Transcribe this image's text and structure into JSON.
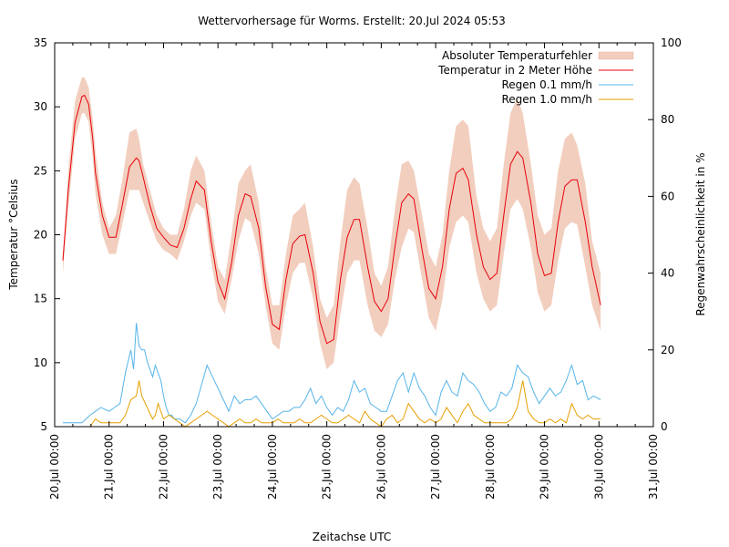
{
  "chart_data": {
    "type": "line",
    "title": "Wettervorhersage für Worms. Erstellt: 20.Jul 2024 05:53",
    "xlabel": "Zeitachse UTC",
    "ylabel": "Temperatur °Celsius",
    "y2label": "Regenwahrscheinlichkeit in %",
    "xlim_days": [
      0,
      11
    ],
    "x_unit": "days since 20.Jul 00:00",
    "ylim": [
      5,
      35
    ],
    "y2lim": [
      0,
      100
    ],
    "grid": false,
    "legend_position": "top-right",
    "x_ticks": [
      "20.Jul 00:00",
      "21.Jul 00:00",
      "22.Jul 00:00",
      "23.Jul 00:00",
      "24.Jul 00:00",
      "25.Jul 00:00",
      "26.Jul 00:00",
      "27.Jul 00:00",
      "28.Jul 00:00",
      "29.Jul 00:00",
      "30.Jul 00:00",
      "31.Jul 00:00"
    ],
    "y_ticks": [
      5,
      10,
      15,
      20,
      25,
      30,
      35
    ],
    "y2_ticks": [
      0,
      20,
      40,
      60,
      80,
      100
    ],
    "x_minor_ticks_per_day": 3,
    "colors": {
      "band": "#f2cebe",
      "temp": "#e8000b",
      "rain01": "#56b4e9",
      "rain10": "#e69f00"
    },
    "legend": [
      {
        "label": "Absoluter Temperaturfehler",
        "kind": "band"
      },
      {
        "label": "Temperatur in 2 Meter Höhe",
        "kind": "temp"
      },
      {
        "label": "Regen 0.1 mm/h",
        "kind": "rain01"
      },
      {
        "label": "Regen 1.0 mm/h",
        "kind": "rain10"
      }
    ],
    "series": [
      {
        "name": "Temperatur in 2 Meter Höhe",
        "unit": "°C",
        "x_days": [
          0.15,
          0.25,
          0.375,
          0.5,
          0.55,
          0.625,
          0.7,
          0.75,
          0.875,
          1.0,
          1.125,
          1.25,
          1.375,
          1.5,
          1.55,
          1.625,
          1.75,
          1.875,
          2.0,
          2.125,
          2.25,
          2.375,
          2.5,
          2.6,
          2.75,
          2.875,
          3.0,
          3.125,
          3.25,
          3.375,
          3.5,
          3.6,
          3.75,
          3.875,
          4.0,
          4.125,
          4.25,
          4.375,
          4.5,
          4.6,
          4.75,
          4.875,
          5.0,
          5.125,
          5.25,
          5.375,
          5.5,
          5.6,
          5.75,
          5.875,
          6.0,
          6.125,
          6.25,
          6.375,
          6.5,
          6.6,
          6.75,
          6.875,
          7.0,
          7.125,
          7.25,
          7.375,
          7.5,
          7.6,
          7.75,
          7.875,
          8.0,
          8.125,
          8.25,
          8.375,
          8.5,
          8.6,
          8.75,
          8.875,
          9.0,
          9.125,
          9.25,
          9.375,
          9.5,
          9.6,
          9.75,
          9.875,
          10.03
        ],
        "values": [
          18.0,
          23.5,
          28.8,
          30.8,
          30.9,
          30.2,
          27.5,
          24.8,
          21.5,
          19.8,
          19.8,
          22.5,
          25.3,
          26.0,
          25.8,
          24.5,
          22.3,
          20.5,
          19.8,
          19.2,
          19.0,
          20.5,
          22.8,
          24.2,
          23.5,
          19.5,
          16.3,
          15.0,
          17.8,
          21.5,
          23.2,
          23.0,
          20.5,
          16.0,
          13.0,
          12.6,
          16.5,
          19.3,
          19.9,
          20.0,
          17.0,
          13.2,
          11.5,
          11.8,
          16.5,
          19.8,
          21.2,
          21.2,
          17.5,
          14.8,
          14.0,
          15.0,
          19.0,
          22.5,
          23.2,
          22.8,
          18.8,
          15.8,
          15.0,
          17.5,
          22.0,
          24.8,
          25.2,
          24.3,
          20.0,
          17.5,
          16.5,
          17.0,
          21.5,
          25.5,
          26.5,
          26.0,
          22.5,
          18.5,
          16.8,
          17.0,
          21.0,
          23.8,
          24.3,
          24.3,
          21.0,
          17.5,
          14.5
        ]
      },
      {
        "name": "Absoluter Temperaturfehler (upper)",
        "unit": "°C",
        "values": [
          18.0,
          25.0,
          30.5,
          32.3,
          32.3,
          31.5,
          29.0,
          26.5,
          22.5,
          20.5,
          21.5,
          24.5,
          28.0,
          28.3,
          27.5,
          25.5,
          23.5,
          21.5,
          20.5,
          20.0,
          20.0,
          22.0,
          25.0,
          26.2,
          25.0,
          21.0,
          17.5,
          16.5,
          20.0,
          24.0,
          25.0,
          25.5,
          22.5,
          17.5,
          14.5,
          14.5,
          18.5,
          21.5,
          22.0,
          22.5,
          19.0,
          15.0,
          13.5,
          14.5,
          19.5,
          23.5,
          24.5,
          24.0,
          20.5,
          17.0,
          16.0,
          17.5,
          22.0,
          25.5,
          25.8,
          25.0,
          21.5,
          18.5,
          17.5,
          20.0,
          25.0,
          28.5,
          29.0,
          28.5,
          23.0,
          20.5,
          19.5,
          20.5,
          25.5,
          29.5,
          30.7,
          29.5,
          25.5,
          21.5,
          20.0,
          20.5,
          25.0,
          27.5,
          28.0,
          27.0,
          24.0,
          19.5,
          17.0
        ]
      },
      {
        "name": "Absoluter Temperaturfehler (lower)",
        "unit": "°C",
        "values": [
          17.0,
          22.0,
          27.5,
          29.5,
          29.5,
          28.8,
          26.0,
          23.2,
          20.0,
          18.5,
          18.5,
          21.0,
          23.5,
          23.5,
          23.5,
          22.5,
          21.0,
          19.5,
          18.8,
          18.5,
          18.0,
          19.5,
          21.5,
          22.5,
          22.0,
          18.0,
          14.8,
          13.8,
          16.5,
          19.5,
          21.3,
          21.0,
          18.5,
          14.5,
          11.5,
          11.0,
          14.5,
          17.0,
          17.8,
          17.8,
          15.0,
          11.5,
          9.5,
          10.0,
          13.8,
          17.0,
          18.0,
          18.0,
          14.5,
          12.5,
          12.0,
          13.0,
          16.5,
          19.0,
          20.5,
          20.2,
          16.5,
          13.5,
          12.5,
          15.0,
          19.0,
          21.0,
          21.5,
          21.0,
          17.0,
          15.0,
          14.0,
          14.5,
          18.5,
          22.0,
          22.8,
          22.0,
          19.0,
          15.5,
          14.0,
          14.5,
          18.0,
          20.5,
          21.0,
          20.8,
          17.5,
          14.5,
          12.5
        ]
      },
      {
        "name": "Regen 0.1 mm/h",
        "unit": "%",
        "x_days": [
          0.15,
          0.5,
          0.65,
          0.75,
          0.85,
          1.0,
          1.1,
          1.2,
          1.3,
          1.4,
          1.45,
          1.5,
          1.55,
          1.6,
          1.65,
          1.7,
          1.8,
          1.85,
          1.9,
          1.95,
          2.0,
          2.05,
          2.1,
          2.15,
          2.2,
          2.3,
          2.4,
          2.5,
          2.6,
          2.7,
          2.8,
          2.9,
          3.0,
          3.1,
          3.2,
          3.3,
          3.4,
          3.5,
          3.6,
          3.7,
          3.8,
          3.9,
          4.0,
          4.1,
          4.2,
          4.3,
          4.4,
          4.5,
          4.6,
          4.7,
          4.8,
          4.9,
          5.0,
          5.1,
          5.2,
          5.3,
          5.4,
          5.5,
          5.6,
          5.7,
          5.8,
          5.9,
          6.0,
          6.1,
          6.2,
          6.3,
          6.4,
          6.5,
          6.6,
          6.7,
          6.8,
          6.9,
          7.0,
          7.1,
          7.2,
          7.3,
          7.4,
          7.5,
          7.6,
          7.7,
          7.8,
          7.9,
          8.0,
          8.1,
          8.2,
          8.3,
          8.4,
          8.5,
          8.6,
          8.7,
          8.8,
          8.9,
          9.0,
          9.1,
          9.2,
          9.3,
          9.4,
          9.5,
          9.6,
          9.7,
          9.8,
          9.9,
          10.03
        ],
        "values": [
          1,
          1,
          3,
          4,
          5,
          4,
          5,
          6,
          14,
          20,
          15,
          27,
          21,
          20,
          20,
          17,
          13,
          16,
          14,
          12,
          8,
          5,
          3,
          3,
          2,
          2,
          1,
          3,
          6,
          11,
          16,
          13,
          10,
          7,
          4,
          8,
          6,
          7,
          7,
          8,
          6,
          4,
          2,
          3,
          4,
          4,
          5,
          5,
          7,
          10,
          6,
          8,
          5,
          3,
          5,
          4,
          7,
          12,
          9,
          10,
          6,
          5,
          4,
          4,
          8,
          12,
          14,
          9,
          14,
          10,
          8,
          5,
          3,
          9,
          12,
          9,
          8,
          14,
          12,
          11,
          9,
          6,
          4,
          5,
          9,
          8,
          10,
          16,
          14,
          13,
          9,
          6,
          8,
          10,
          8,
          9,
          12,
          16,
          11,
          12,
          7,
          8,
          7
        ]
      },
      {
        "name": "Regen 1.0 mm/h",
        "unit": "%",
        "x_days": [
          0.15,
          0.65,
          0.75,
          0.85,
          1.0,
          1.1,
          1.2,
          1.3,
          1.4,
          1.5,
          1.55,
          1.6,
          1.7,
          1.8,
          1.85,
          1.9,
          2.0,
          2.1,
          2.2,
          2.3,
          2.4,
          2.5,
          2.6,
          2.7,
          2.8,
          2.9,
          3.0,
          3.1,
          3.2,
          3.3,
          3.4,
          3.5,
          3.6,
          3.7,
          3.8,
          3.9,
          4.0,
          4.1,
          4.2,
          4.3,
          4.4,
          4.5,
          4.6,
          4.7,
          4.8,
          4.9,
          5.0,
          5.1,
          5.2,
          5.3,
          5.4,
          5.5,
          5.6,
          5.7,
          5.8,
          5.9,
          6.0,
          6.1,
          6.2,
          6.3,
          6.4,
          6.5,
          6.6,
          6.7,
          6.8,
          6.9,
          7.0,
          7.1,
          7.2,
          7.3,
          7.4,
          7.5,
          7.6,
          7.7,
          7.8,
          7.9,
          8.0,
          8.1,
          8.2,
          8.3,
          8.4,
          8.5,
          8.6,
          8.7,
          8.8,
          8.9,
          9.0,
          9.1,
          9.2,
          9.3,
          9.4,
          9.5,
          9.6,
          9.7,
          9.8,
          9.9,
          10.03
        ],
        "values": [
          0,
          0,
          2,
          1,
          1,
          1,
          1,
          3,
          7,
          8,
          12,
          8,
          5,
          2,
          3,
          6,
          2,
          3,
          2,
          1,
          0,
          1,
          2,
          3,
          4,
          3,
          2,
          1,
          0,
          1,
          2,
          1,
          1,
          2,
          1,
          1,
          1,
          2,
          1,
          1,
          1,
          2,
          1,
          1,
          2,
          3,
          2,
          1,
          1,
          2,
          3,
          2,
          1,
          4,
          2,
          1,
          0,
          2,
          3,
          1,
          2,
          6,
          4,
          2,
          1,
          2,
          1,
          2,
          5,
          3,
          1,
          4,
          6,
          3,
          2,
          1,
          1,
          1,
          1,
          1,
          2,
          5,
          12,
          4,
          2,
          1,
          1,
          2,
          1,
          2,
          1,
          6,
          3,
          2,
          3,
          2,
          2
        ]
      }
    ]
  }
}
